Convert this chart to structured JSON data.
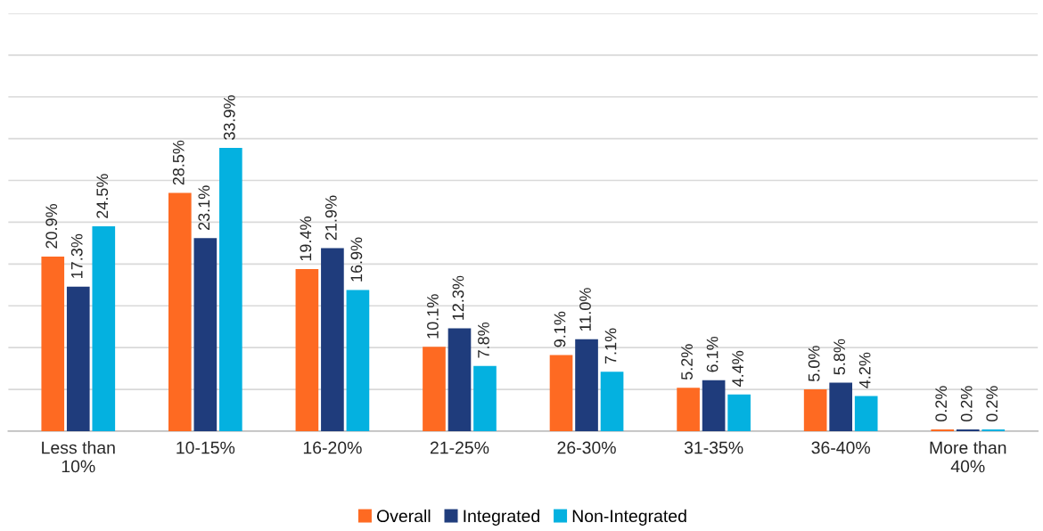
{
  "chart_data": {
    "type": "bar",
    "categories": [
      "Less than\n10%",
      "10-15%",
      "16-20%",
      "21-25%",
      "26-30%",
      "31-35%",
      "36-40%",
      "More than\n40%"
    ],
    "series": [
      {
        "name": "Overall",
        "color": "#fe6a22",
        "values": [
          20.9,
          28.5,
          19.4,
          10.1,
          9.1,
          5.2,
          5.0,
          0.2
        ],
        "value_labels": [
          "20.9%",
          "28.5%",
          "19.4%",
          "10.1%",
          "9.1%",
          "5.2%",
          "5.0%",
          "0.2%"
        ]
      },
      {
        "name": "Integrated",
        "color": "#1f3c7c",
        "values": [
          17.3,
          23.1,
          21.9,
          12.3,
          11.0,
          6.1,
          5.8,
          0.2
        ],
        "value_labels": [
          "17.3%",
          "23.1%",
          "21.9%",
          "12.3%",
          "11.0%",
          "6.1%",
          "5.8%",
          "0.2%"
        ]
      },
      {
        "name": "Non-Integrated",
        "color": "#04b1e0",
        "values": [
          24.5,
          33.9,
          16.9,
          7.8,
          7.1,
          4.4,
          4.2,
          0.2
        ],
        "value_labels": [
          "24.5%",
          "33.9%",
          "16.9%",
          "7.8%",
          "7.1%",
          "4.4%",
          "4.2%",
          "0.2%"
        ]
      }
    ],
    "ylim": [
      0,
      50
    ],
    "yticks": [
      {
        "value": 0,
        "label": null
      },
      {
        "value": 5,
        "label": null
      },
      {
        "value": 10,
        "label": null
      },
      {
        "value": 15,
        "label": null
      },
      {
        "value": 20,
        "label": null
      },
      {
        "value": 25,
        "label": null
      },
      {
        "value": 30,
        "label": null
      },
      {
        "value": 35,
        "label": null
      },
      {
        "value": 40,
        "label": null
      },
      {
        "value": 45,
        "label": null
      },
      {
        "value": 50,
        "label": null
      }
    ],
    "grid": "y",
    "legend": "bottom",
    "tick_labels": "x"
  }
}
